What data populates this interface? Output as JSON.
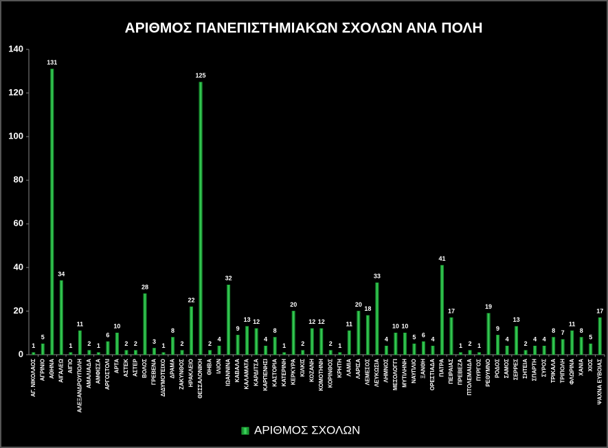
{
  "chart_data": {
    "type": "bar",
    "title": "ΑΡΙΘΜΟΣ ΠΑΝΕΠΙΣΤΗΜΙΑΚΩΝ ΣΧΟΛΩΝ ΑΝΑ ΠΟΛΗ",
    "categories": [
      "ΑΓ. ΝΙΚΟΛΑΟΣ",
      "ΑΓΡΙΝΙΟ",
      "ΑΘΗΝΑ",
      "ΑΙΓΑΛΕΩ",
      "ΑΙΓΙΟ",
      "ΑΛΕΞΑΝΔΡΟΥΠΟΛΗ",
      "ΑΜΑΛΙΑΔΑ",
      "ΑΜΦΙΣΣΑ",
      "ΑΡΓΟΣΤΟΛΙ",
      "ΑΡΤΑ",
      "ΑΣΤΕΚ",
      "ΑΣΤΕΡ",
      "ΒΟΛΟΣ",
      "ΓΡΕΒΕΝΑ",
      "ΔΙΔΥΜΟΤΕΙΧΟ",
      "ΔΡΑΜΑ",
      "ΖΑΚΥΝΘΟΣ",
      "ΗΡΑΚΛΕΙΟ",
      "ΘΕΣΣΑΛΟΝΙΚΗ",
      "ΘΗΒΑ",
      "ΙΛΙΟΝ",
      "ΙΩΑΝΝΙΝΑ",
      "ΚΑΒΑΛΑ",
      "ΚΑΛΑΜΑΤΑ",
      "ΚΑΡΔΙΤΣΑ",
      "ΚΑΡΠΕΝΗΣΙ",
      "ΚΑΣΤΟΡΙΑ",
      "ΚΑΤΕΡΙΝΗ",
      "ΚΕΡΚΥΡΑ",
      "ΚΙΛΚΙΣ",
      "ΚΟΖΑΝΗ",
      "ΚΟΜΟΤΗΝΗ",
      "ΚΟΡΙΝΘΟΣ",
      "ΚΡΗΤΗ",
      "ΛΑΜΙΑ",
      "ΛΑΡΙΣΑ",
      "ΛΕΜΕΣΟΣ",
      "ΛΕΥΚΩΣΙΑ",
      "ΛΗΜΝΟΣ",
      "ΜΕΣΟΛΟΓΓΙ",
      "ΜΥΤΙΛΗΝΗ",
      "ΝΑΥΠΛΙΟ",
      "ΞΑΝΘΗ",
      "ΟΡΕΣΤΙΑΔΑ",
      "ΠΑΤΡΑ",
      "ΠΕΙΡΑΙΑΣ",
      "ΠΡΕΒΕΖΑ",
      "ΠΤΟΛΕΜΑΙΔΑ",
      "ΠΥΡΓΟΣ",
      "ΡΕΘΥΜΝΟ",
      "ΡΟΔΟΣ",
      "ΣΑΜΟΣ",
      "ΣΕΡΡΕΣ",
      "ΣΗΤΕΙΑ",
      "ΣΠΑΡΤΗ",
      "ΣΥΡΟΣ",
      "ΤΡΙΚΑΛΑ",
      "ΤΡΙΠΟΛΗ",
      "ΦΛΩΡΙΝΑ",
      "ΧΑΝΙΑ",
      "ΧΙΟΣ",
      "ΨΑΧΝΑ ΕΥΒΟΙΑΣ"
    ],
    "series": [
      {
        "name": "ΑΡΙΘΜΟΣ ΣΧΟΛΩΝ",
        "color": "#1fb43a",
        "values": [
          1,
          5,
          131,
          34,
          1,
          11,
          2,
          1,
          6,
          10,
          2,
          2,
          28,
          3,
          1,
          8,
          2,
          22,
          125,
          2,
          4,
          32,
          9,
          13,
          12,
          4,
          8,
          1,
          20,
          2,
          12,
          12,
          2,
          1,
          11,
          20,
          18,
          33,
          4,
          10,
          10,
          5,
          6,
          4,
          41,
          17,
          1,
          2,
          1,
          19,
          9,
          4,
          13,
          2,
          4,
          4,
          8,
          7,
          11,
          8,
          5,
          17
        ]
      }
    ],
    "ylim": [
      0,
      140
    ],
    "yticks": [
      0,
      20,
      40,
      60,
      80,
      100,
      120,
      140
    ],
    "legend": "bottom"
  }
}
